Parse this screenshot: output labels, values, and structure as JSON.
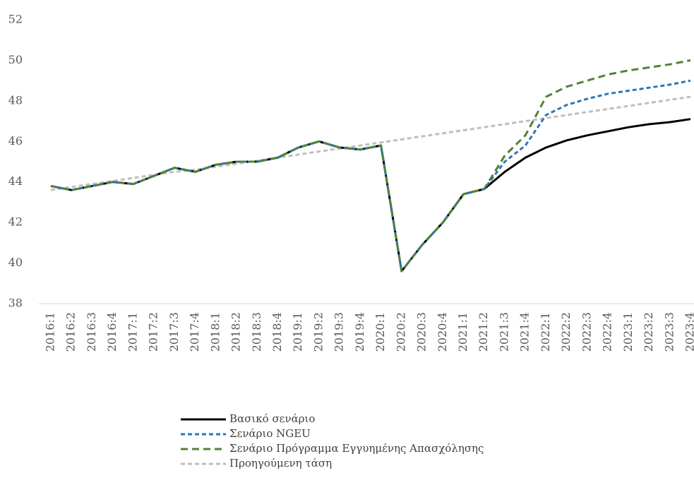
{
  "chart_data": {
    "type": "line",
    "categories": [
      "2016:1",
      "2016:2",
      "2016:3",
      "2016:4",
      "2017:1",
      "2017:2",
      "2017:3",
      "2017:4",
      "2018:1",
      "2018:2",
      "2018:3",
      "2018:4",
      "2019:1",
      "2019:2",
      "2019:3",
      "2019:4",
      "2020:1",
      "2020:2",
      "2020:3",
      "2020:4",
      "2021:1",
      "2021:2",
      "2021:3",
      "2021:4",
      "2022:1",
      "2022:2",
      "2022:3",
      "2022:4",
      "2023:1",
      "2023:2",
      "2023:3",
      "2023:4"
    ],
    "series": [
      {
        "name": "Βασικό σενάριο",
        "color": "#000000",
        "values": [
          43.8,
          43.6,
          43.8,
          44.0,
          43.9,
          44.3,
          44.7,
          44.5,
          44.85,
          45.0,
          45.0,
          45.2,
          45.7,
          46.0,
          45.7,
          45.6,
          45.8,
          39.6,
          40.9,
          42.0,
          43.4,
          43.65,
          44.5,
          45.2,
          45.7,
          46.05,
          46.3,
          46.5,
          46.7,
          46.85,
          46.95,
          47.1
        ]
      },
      {
        "name": "Σενάριο NGEU",
        "color": "#2e75b6",
        "values": [
          43.8,
          43.6,
          43.8,
          44.0,
          43.9,
          44.3,
          44.7,
          44.5,
          44.85,
          45.0,
          45.0,
          45.2,
          45.7,
          46.0,
          45.7,
          45.6,
          45.8,
          39.6,
          40.9,
          42.0,
          43.4,
          43.65,
          45.0,
          45.8,
          47.3,
          47.8,
          48.1,
          48.35,
          48.5,
          48.65,
          48.8,
          49.0
        ]
      },
      {
        "name": "Σενάριο Πρόγραμμα Εγγυημένης Απασχόλησης",
        "color": "#548235",
        "values": [
          43.8,
          43.6,
          43.8,
          44.0,
          43.9,
          44.3,
          44.7,
          44.5,
          44.85,
          45.0,
          45.0,
          45.2,
          45.7,
          46.0,
          45.7,
          45.6,
          45.8,
          39.6,
          40.9,
          42.0,
          43.4,
          43.65,
          45.3,
          46.3,
          48.2,
          48.7,
          49.0,
          49.3,
          49.5,
          49.65,
          49.8,
          50.0
        ]
      },
      {
        "name": "Προηγούμενη τάση",
        "color": "#bfbfbf",
        "values": [
          43.6,
          43.75,
          43.9,
          44.05,
          44.2,
          44.35,
          44.5,
          44.6,
          44.75,
          44.9,
          45.05,
          45.2,
          45.35,
          45.5,
          45.65,
          45.8,
          45.95,
          46.1,
          46.25,
          46.4,
          46.55,
          46.7,
          46.85,
          47.0,
          47.15,
          47.3,
          47.45,
          47.6,
          47.75,
          47.9,
          48.05,
          48.2
        ]
      }
    ],
    "ylim": [
      38,
      52
    ],
    "yticks": [
      38,
      40,
      42,
      44,
      46,
      48,
      50,
      52
    ],
    "grid": false,
    "legend": "bottom"
  }
}
